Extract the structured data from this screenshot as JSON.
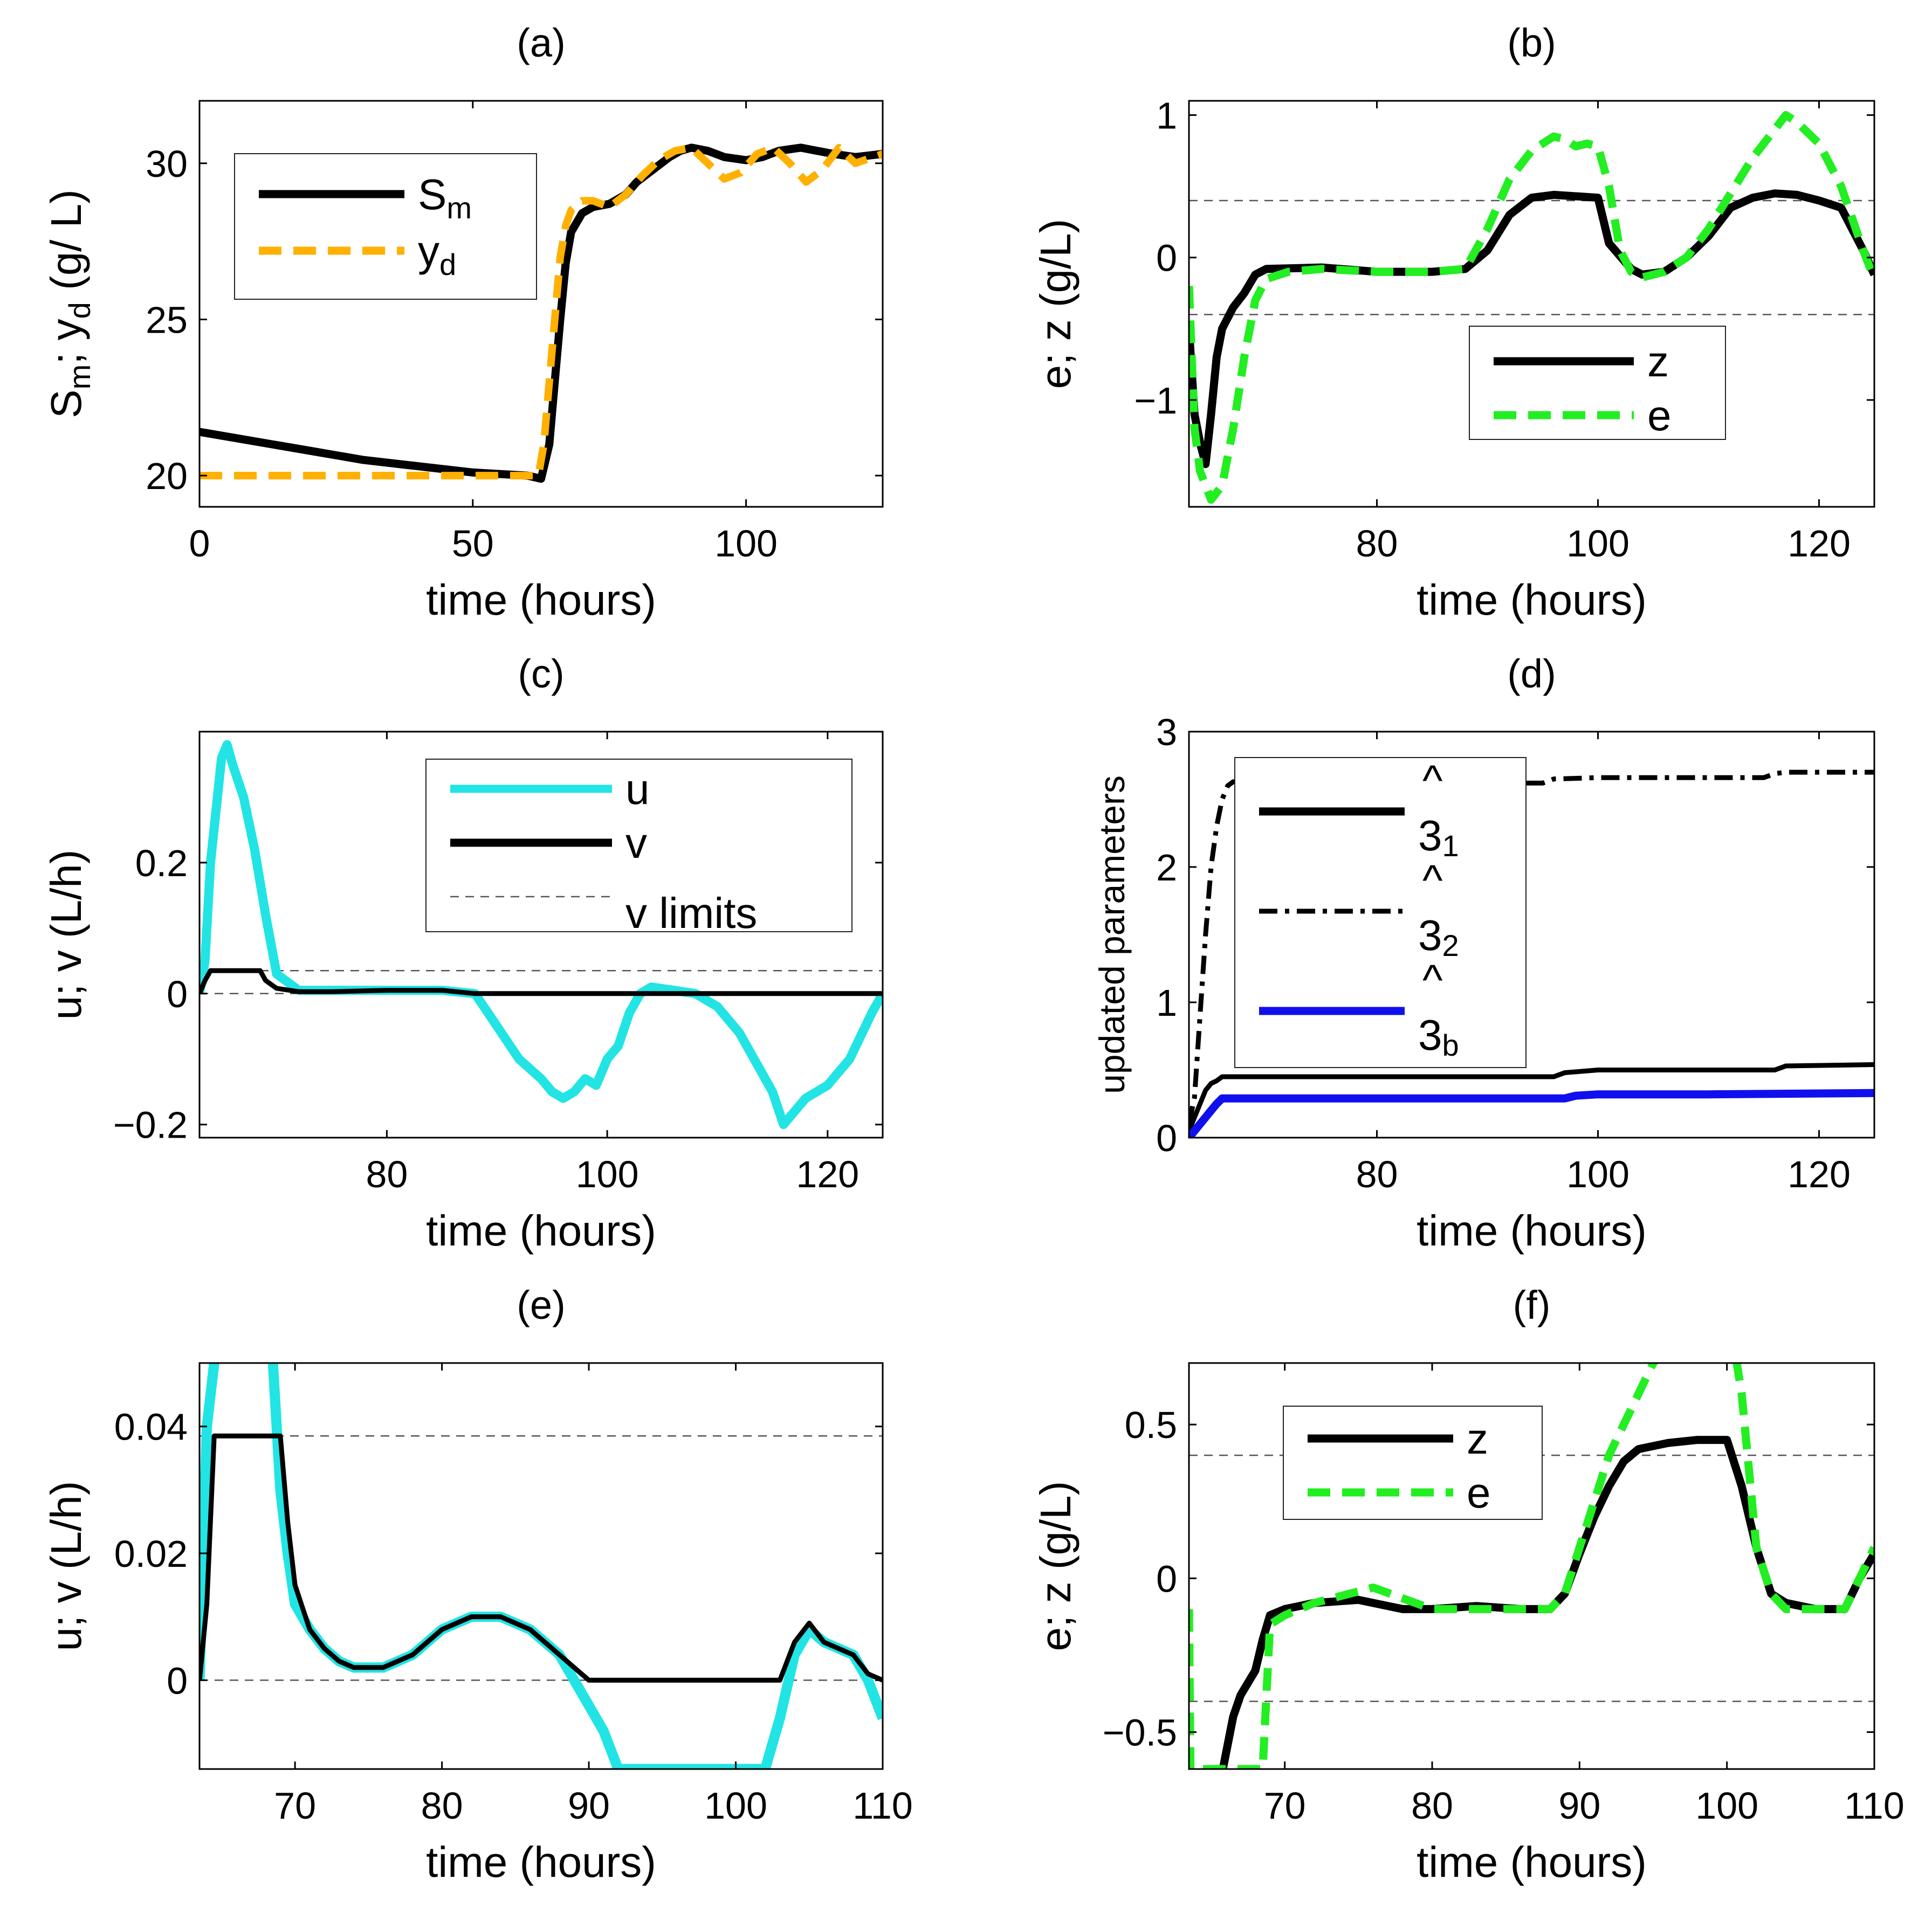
{
  "chart_data": [
    {
      "id": "a",
      "type": "line",
      "title": "(a)",
      "xlabel": "time (hours)",
      "ylabel": "S_m; y_d (g/L)",
      "ylabel_parts": [
        "S",
        "m",
        "; y",
        "d",
        " (g/ L)"
      ],
      "xlim": [
        0,
        125
      ],
      "ylim": [
        19,
        32
      ],
      "xticks": [
        0,
        50,
        100
      ],
      "yticks": [
        20,
        25,
        30
      ],
      "legend": [
        {
          "main": "S",
          "sub": "m",
          "color": "#000000",
          "style": "solid"
        },
        {
          "main": "y",
          "sub": "d",
          "color": "#FFB000",
          "style": "dash"
        }
      ],
      "series": [
        {
          "name": "S_m",
          "color": "#000000",
          "style": "solid",
          "width": 15,
          "x": [
            0,
            10,
            20,
            30,
            40,
            50,
            60,
            62.5,
            64,
            65,
            66,
            67,
            68,
            70,
            72,
            75,
            78,
            80,
            83,
            86,
            88,
            90,
            93,
            96,
            100,
            103,
            106,
            110,
            113,
            116,
            120,
            125
          ],
          "y": [
            21.4,
            21.1,
            20.8,
            20.5,
            20.3,
            20.1,
            20.0,
            19.9,
            21.0,
            23.0,
            25.0,
            26.8,
            27.8,
            28.4,
            28.6,
            28.7,
            29.0,
            29.4,
            29.8,
            30.2,
            30.4,
            30.5,
            30.4,
            30.2,
            30.1,
            30.2,
            30.4,
            30.5,
            30.4,
            30.3,
            30.2,
            30.3
          ]
        },
        {
          "name": "y_d",
          "color": "#FFB000",
          "style": "dash",
          "width": 14,
          "x": [
            0,
            62,
            63,
            64,
            65,
            66,
            67,
            68,
            70,
            72,
            75,
            78,
            81,
            84,
            87,
            90,
            93,
            96,
            99,
            102,
            105,
            108,
            111,
            114,
            117,
            120,
            125
          ],
          "y": [
            20.0,
            20.0,
            21.0,
            23.0,
            25.0,
            27.0,
            28.0,
            28.5,
            28.8,
            28.8,
            28.6,
            29.0,
            29.6,
            30.1,
            30.4,
            30.5,
            30.0,
            29.5,
            29.7,
            30.3,
            30.5,
            30.0,
            29.4,
            29.8,
            30.5,
            30.0,
            30.3
          ]
        }
      ]
    },
    {
      "id": "b",
      "type": "line",
      "title": "(b)",
      "xlabel": "time (hours)",
      "ylabel": "e; z (g/L)",
      "xlim": [
        63,
        125
      ],
      "ylim": [
        -1.75,
        1.1
      ],
      "xticks": [
        80,
        100,
        120
      ],
      "yticks": [
        -1,
        0,
        1
      ],
      "limits": [
        0.4,
        -0.4
      ],
      "legend": [
        {
          "main": "z",
          "sub": "",
          "color": "#000000",
          "style": "solid"
        },
        {
          "main": "e",
          "sub": "",
          "color": "#22EE22",
          "style": "dash"
        }
      ],
      "series": [
        {
          "name": "z",
          "color": "#000000",
          "style": "solid",
          "width": 15,
          "x": [
            63,
            63.5,
            64,
            64.5,
            65,
            65.5,
            66,
            67,
            68,
            69,
            70,
            75,
            80,
            85,
            88,
            90,
            92,
            94,
            96,
            98,
            100,
            101,
            103,
            104,
            106,
            108,
            110,
            112,
            114,
            116,
            118,
            120,
            122,
            124,
            125
          ],
          "y": [
            -0.5,
            -1.1,
            -1.3,
            -1.45,
            -1.1,
            -0.7,
            -0.5,
            -0.35,
            -0.25,
            -0.12,
            -0.08,
            -0.07,
            -0.1,
            -0.1,
            -0.08,
            0.05,
            0.3,
            0.42,
            0.44,
            0.43,
            0.42,
            0.1,
            -0.08,
            -0.12,
            -0.1,
            0.0,
            0.15,
            0.35,
            0.42,
            0.45,
            0.44,
            0.4,
            0.35,
            0.05,
            -0.12
          ]
        },
        {
          "name": "e",
          "color": "#22EE22",
          "style": "dash",
          "width": 15,
          "x": [
            63,
            63.5,
            64,
            65,
            66,
            67,
            68,
            69,
            70,
            72,
            75,
            80,
            85,
            88,
            90,
            92,
            94,
            96,
            97,
            98,
            99,
            100,
            101,
            102,
            103,
            104,
            106,
            108,
            110,
            112,
            114,
            116,
            117,
            118,
            120,
            122,
            124,
            125
          ],
          "y": [
            -0.2,
            -1.2,
            -1.5,
            -1.7,
            -1.6,
            -1.2,
            -0.7,
            -0.3,
            -0.15,
            -0.1,
            -0.08,
            -0.1,
            -0.1,
            -0.08,
            0.2,
            0.55,
            0.75,
            0.85,
            0.83,
            0.78,
            0.8,
            0.78,
            0.5,
            0.05,
            -0.1,
            -0.14,
            -0.1,
            0.0,
            0.2,
            0.45,
            0.7,
            0.9,
            1.0,
            0.95,
            0.8,
            0.5,
            0.05,
            -0.15
          ]
        }
      ]
    },
    {
      "id": "c",
      "type": "line",
      "title": "(c)",
      "xlabel": "time (hours)",
      "ylabel": "u; v (L/h)",
      "xlim": [
        63,
        125
      ],
      "ylim": [
        -0.22,
        0.4
      ],
      "xticks": [
        80,
        100,
        120
      ],
      "yticks": [
        -0.2,
        0,
        0.2
      ],
      "ytick_labels": [
        "−0.2",
        "0",
        "0.2"
      ],
      "limits": [
        0.035,
        0
      ],
      "legend": [
        {
          "main": "u",
          "sub": "",
          "color": "#22E4E4",
          "style": "solid"
        },
        {
          "main": "v",
          "sub": "",
          "color": "#000000",
          "style": "solid"
        },
        {
          "main": "v limits",
          "sub": "",
          "color": "#555555",
          "style": "thin-dash"
        }
      ],
      "series": [
        {
          "name": "u",
          "color": "#22E4E4",
          "style": "solid",
          "width": 17,
          "x": [
            63,
            63.5,
            64,
            65,
            65.5,
            66,
            67,
            68,
            69,
            70,
            72,
            75,
            80,
            85,
            88,
            90,
            92,
            94,
            95,
            96,
            97,
            98,
            99,
            100,
            101,
            102,
            103,
            104,
            106,
            108,
            110,
            112,
            114,
            115,
            116,
            117,
            118,
            120,
            122,
            124,
            125
          ],
          "y": [
            0.0,
            0.05,
            0.2,
            0.36,
            0.38,
            0.35,
            0.3,
            0.22,
            0.12,
            0.03,
            0.005,
            0.005,
            0.005,
            0.005,
            0.0,
            -0.05,
            -0.1,
            -0.13,
            -0.15,
            -0.16,
            -0.15,
            -0.13,
            -0.14,
            -0.1,
            -0.08,
            -0.03,
            0.0,
            0.01,
            0.005,
            0.0,
            -0.02,
            -0.06,
            -0.12,
            -0.15,
            -0.2,
            -0.18,
            -0.16,
            -0.14,
            -0.1,
            -0.03,
            0.0
          ]
        },
        {
          "name": "v",
          "color": "#000000",
          "style": "solid",
          "width": 9,
          "x": [
            63,
            63.5,
            64,
            68.5,
            69,
            70,
            72,
            75,
            80,
            85,
            88,
            90,
            100,
            125
          ],
          "y": [
            0.0,
            0.02,
            0.035,
            0.035,
            0.02,
            0.008,
            0.003,
            0.003,
            0.005,
            0.005,
            0.0,
            0.0,
            0.0,
            0.0
          ]
        }
      ]
    },
    {
      "id": "d",
      "type": "line",
      "title": "(d)",
      "xlabel": "time (hours)",
      "ylabel": "updated parameters",
      "xlim": [
        63,
        125
      ],
      "ylim": [
        0,
        3
      ],
      "xticks": [
        80,
        100,
        120
      ],
      "yticks": [
        0,
        1,
        2,
        3
      ],
      "legend": [
        {
          "main": "3",
          "sub": "1",
          "hat": "^",
          "color": "#000000",
          "style": "solid"
        },
        {
          "main": "3",
          "sub": "2",
          "hat": "^",
          "color": "#000000",
          "style": "dashdot"
        },
        {
          "main": "3",
          "sub": "b",
          "hat": "^",
          "color": "#1010EE",
          "style": "solid"
        }
      ],
      "series": [
        {
          "name": "theta_1",
          "color": "#000000",
          "style": "solid",
          "width": 9,
          "x": [
            63,
            63.5,
            64,
            64.5,
            65,
            65.5,
            66,
            70,
            80,
            90,
            96,
            97,
            100,
            110,
            116,
            117,
            125
          ],
          "y": [
            0.05,
            0.15,
            0.25,
            0.35,
            0.4,
            0.42,
            0.45,
            0.45,
            0.45,
            0.45,
            0.45,
            0.48,
            0.5,
            0.5,
            0.5,
            0.53,
            0.54
          ]
        },
        {
          "name": "theta_2",
          "color": "#000000",
          "style": "dashdot",
          "width": 9,
          "x": [
            63,
            63.5,
            64,
            64.5,
            65,
            65.5,
            66,
            66.5,
            67,
            68,
            70,
            80,
            90,
            95,
            96,
            100,
            110,
            115,
            116,
            117,
            125
          ],
          "y": [
            0.1,
            0.3,
            0.9,
            1.5,
            2.0,
            2.3,
            2.5,
            2.6,
            2.63,
            2.63,
            2.63,
            2.62,
            2.62,
            2.62,
            2.65,
            2.66,
            2.66,
            2.66,
            2.69,
            2.7,
            2.7
          ]
        },
        {
          "name": "theta_b",
          "color": "#1010EE",
          "style": "solid",
          "width": 15,
          "x": [
            63,
            63.5,
            64,
            64.5,
            65,
            65.5,
            66,
            70,
            80,
            90,
            97,
            98,
            100,
            110,
            125
          ],
          "y": [
            0.0,
            0.05,
            0.1,
            0.15,
            0.2,
            0.25,
            0.29,
            0.29,
            0.29,
            0.29,
            0.29,
            0.31,
            0.32,
            0.32,
            0.33
          ]
        }
      ]
    },
    {
      "id": "e",
      "type": "line",
      "title": "(e)",
      "xlabel": "time (hours)",
      "ylabel": "u; v (L/h)",
      "xlim": [
        63.5,
        110
      ],
      "ylim": [
        -0.014,
        0.05
      ],
      "xticks": [
        70,
        80,
        90,
        100,
        110
      ],
      "yticks": [
        0,
        0.02,
        0.04
      ],
      "limits": [
        0.0385,
        0
      ],
      "series": [
        {
          "name": "u",
          "color": "#22E4E4",
          "style": "solid",
          "width": 19,
          "x": [
            63.5,
            64,
            64.5,
            65,
            68,
            68.5,
            69,
            69.5,
            70,
            71,
            72,
            73,
            74,
            76,
            78,
            80,
            82,
            84,
            86,
            88,
            89,
            90,
            91,
            92,
            102,
            103,
            104,
            105,
            106,
            108,
            109,
            110
          ],
          "y": [
            0.0,
            0.04,
            0.05,
            0.06,
            0.06,
            0.05,
            0.03,
            0.02,
            0.012,
            0.008,
            0.005,
            0.003,
            0.002,
            0.002,
            0.004,
            0.008,
            0.01,
            0.01,
            0.008,
            0.004,
            0.0,
            -0.004,
            -0.008,
            -0.014,
            -0.014,
            -0.006,
            0.004,
            0.008,
            0.006,
            0.004,
            0.0,
            -0.006
          ]
        },
        {
          "name": "v",
          "color": "#000000",
          "style": "solid",
          "width": 9,
          "x": [
            63.5,
            64,
            64.5,
            69,
            69.5,
            70,
            71,
            72,
            73,
            74,
            76,
            78,
            80,
            82,
            84,
            86,
            88,
            89,
            90,
            103,
            104,
            105,
            106,
            108,
            109,
            110
          ],
          "y": [
            0.0,
            0.012,
            0.0385,
            0.0385,
            0.025,
            0.015,
            0.008,
            0.005,
            0.003,
            0.002,
            0.002,
            0.004,
            0.008,
            0.01,
            0.01,
            0.008,
            0.004,
            0.002,
            0.0,
            0.0,
            0.006,
            0.009,
            0.006,
            0.004,
            0.001,
            0.0
          ]
        }
      ]
    },
    {
      "id": "f",
      "type": "line",
      "title": "(f)",
      "xlabel": "time (hours)",
      "ylabel": "e; z (g/L)",
      "xlim": [
        63.5,
        110
      ],
      "ylim": [
        -0.62,
        0.7
      ],
      "xticks": [
        70,
        80,
        90,
        100,
        110
      ],
      "yticks": [
        -0.5,
        0,
        0.5
      ],
      "ytick_labels": [
        "−0.5",
        "0",
        "0.5"
      ],
      "limits": [
        0.4,
        -0.4
      ],
      "legend": [
        {
          "main": "z",
          "sub": "",
          "color": "#000000",
          "style": "solid"
        },
        {
          "main": "e",
          "sub": "",
          "color": "#22EE22",
          "style": "dash"
        }
      ],
      "series": [
        {
          "name": "z",
          "color": "#000000",
          "style": "solid",
          "width": 15,
          "x": [
            65.8,
            66.5,
            67,
            68,
            68.5,
            69,
            70,
            72,
            75,
            78,
            80,
            83,
            86,
            88,
            89,
            90,
            91,
            92,
            93,
            94,
            96,
            98,
            100,
            101,
            102,
            103,
            104,
            106,
            108,
            109,
            110
          ],
          "y": [
            -0.62,
            -0.45,
            -0.38,
            -0.3,
            -0.2,
            -0.12,
            -0.1,
            -0.08,
            -0.07,
            -0.1,
            -0.1,
            -0.09,
            -0.1,
            -0.1,
            -0.05,
            0.08,
            0.2,
            0.3,
            0.38,
            0.42,
            0.44,
            0.45,
            0.45,
            0.3,
            0.1,
            -0.05,
            -0.08,
            -0.1,
            -0.1,
            0.0,
            0.08
          ]
        },
        {
          "name": "e",
          "color": "#22EE22",
          "style": "dash",
          "width": 15,
          "x": [
            63.5,
            63.6,
            68.5,
            69,
            70,
            72,
            76,
            80,
            83,
            86,
            88,
            89,
            90,
            91,
            92,
            93,
            94,
            95,
            96,
            100.5,
            101,
            101.5,
            102,
            103,
            104,
            106,
            108,
            109,
            110
          ],
          "y": [
            -0.1,
            -0.62,
            -0.62,
            -0.15,
            -0.12,
            -0.08,
            -0.03,
            -0.1,
            -0.1,
            -0.1,
            -0.1,
            -0.05,
            0.1,
            0.25,
            0.4,
            0.5,
            0.6,
            0.7,
            0.75,
            0.75,
            0.6,
            0.35,
            0.1,
            -0.05,
            -0.1,
            -0.1,
            -0.1,
            0.0,
            0.1
          ]
        }
      ]
    }
  ]
}
